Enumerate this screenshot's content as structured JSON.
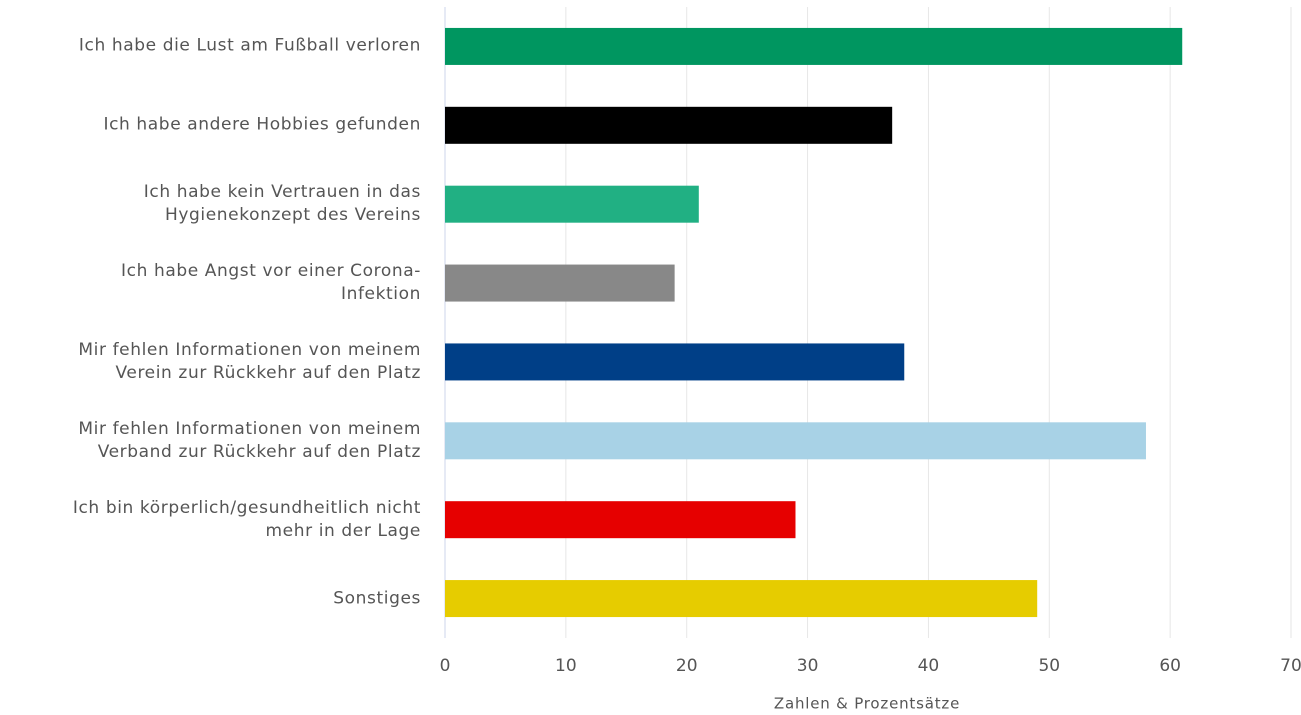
{
  "chart_data": {
    "type": "bar",
    "orientation": "horizontal",
    "categories": [
      "Ich habe die Lust am Fußball verloren",
      "Ich habe andere Hobbies gefunden",
      "Ich habe kein Vertrauen in das\nHygienekonzept des Vereins",
      "Ich habe Angst vor einer Corona-\nInfektion",
      "Mir fehlen Informationen von meinem\nVerein zur Rückkehr auf den Platz",
      "Mir fehlen Informationen von meinem\nVerband zur Rückkehr auf den Platz",
      "Ich bin körperlich/gesundheitlich nicht\nmehr in der Lage",
      "Sonstiges"
    ],
    "values": [
      61,
      37,
      21,
      19,
      38,
      58,
      29,
      49
    ],
    "colors": [
      "#009660",
      "#000000",
      "#21b083",
      "#888888",
      "#003f87",
      "#a8d2e6",
      "#e60000",
      "#e6cc00"
    ],
    "xlabel": "Zahlen & Prozentsätze",
    "xlim": [
      0,
      70
    ],
    "xticks": [
      0,
      10,
      20,
      30,
      40,
      50,
      60,
      70
    ],
    "grid": true
  }
}
